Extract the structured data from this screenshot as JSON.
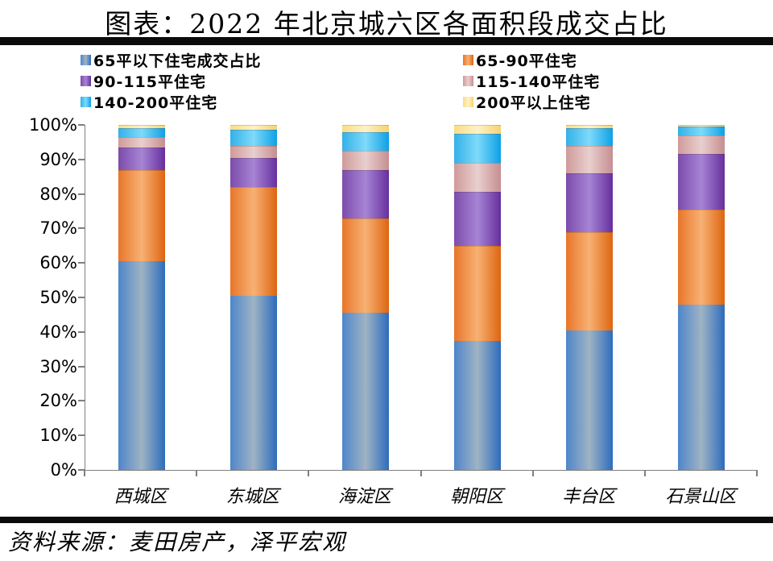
{
  "title": "图表：2022 年北京城六区各面积段成交占比",
  "source": "资料来源：麦田房产，泽平宏观",
  "chart_data": {
    "type": "bar",
    "stacked": true,
    "title": "图表：2022 年北京城六区各面积段成交占比",
    "categories": [
      "西城区",
      "东城区",
      "海淀区",
      "朝阳区",
      "丰台区",
      "石景山区"
    ],
    "series": [
      {
        "name": "65平以下住宅成交占比",
        "color": "#3f78c3",
        "values": [
          60.5,
          50.5,
          45.5,
          37.5,
          40.5,
          48.0
        ]
      },
      {
        "name": "65-90平住宅",
        "color": "#e4711f",
        "values": [
          26.5,
          31.5,
          27.5,
          27.5,
          28.5,
          27.5
        ]
      },
      {
        "name": "90-115平住宅",
        "color": "#7747a8",
        "values": [
          6.5,
          8.5,
          14.0,
          15.5,
          17.0,
          16.0
        ]
      },
      {
        "name": "115-140平住宅",
        "color": "#d0999a",
        "values": [
          3.0,
          3.5,
          5.5,
          8.5,
          8.0,
          5.5
        ]
      },
      {
        "name": "140-200平住宅",
        "color": "#29aee9",
        "values": [
          2.5,
          4.5,
          5.5,
          8.5,
          5.0,
          2.5
        ]
      },
      {
        "name": "200平以上住宅",
        "color": "#f9dc8a",
        "values": [
          1.0,
          1.5,
          2.0,
          2.5,
          1.0,
          0.5
        ]
      }
    ],
    "xlabel": "",
    "ylabel": "",
    "ylim": [
      0,
      100
    ],
    "y_ticks": [
      "0%",
      "10%",
      "20%",
      "30%",
      "40%",
      "50%",
      "60%",
      "70%",
      "80%",
      "90%",
      "100%"
    ],
    "legend_position": "top",
    "grid": false,
    "axis_color": "#7f7f7f"
  }
}
